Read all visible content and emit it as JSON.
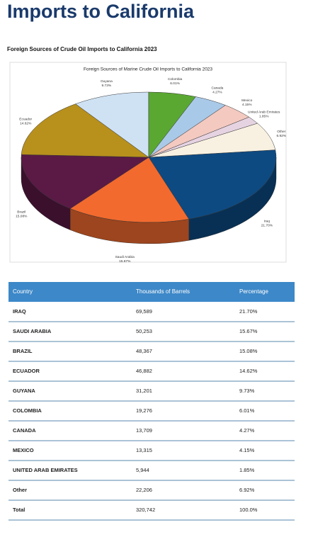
{
  "header": {
    "title": "Imports to California",
    "subtitle": "Foreign Sources of Crude Oil Imports to California 2023"
  },
  "chart_data": {
    "type": "pie",
    "title": "Foreign Sources of Marine Crude Oil Imports to California 2023",
    "categories": [
      "Iraq",
      "Saudi Arabia",
      "Brazil",
      "Ecuador",
      "Guyana",
      "Colombia",
      "Canada",
      "Mexico",
      "United Arab Emirates",
      "Other"
    ],
    "values": [
      21.7,
      15.67,
      15.08,
      14.62,
      9.73,
      6.01,
      4.27,
      4.15,
      1.85,
      6.92
    ],
    "value_labels": [
      "21.70%",
      "15.67%",
      "15.08%",
      "14.62%",
      "9.73%",
      "6.01%",
      "4.27%",
      "4.15%",
      "1.85%",
      "6.92%"
    ],
    "colors": [
      "#0d4a82",
      "#f26a2e",
      "#5a1a45",
      "#b8901c",
      "#cfe2f4",
      "#5aa832",
      "#a9c9e8",
      "#f3c9c0",
      "#e6d3e2",
      "#f8f1e2"
    ]
  },
  "table": {
    "columns": [
      "Country",
      "Thousands of Barrels",
      "Percentage"
    ],
    "rows": [
      [
        "IRAQ",
        "69,589",
        "21.70%"
      ],
      [
        "SAUDI ARABIA",
        "50,253",
        "15.67%"
      ],
      [
        "BRAZIL",
        "48,367",
        "15.08%"
      ],
      [
        "ECUADOR",
        "46,882",
        "14.62%"
      ],
      [
        "GUYANA",
        "31,201",
        "9.73%"
      ],
      [
        "COLOMBIA",
        "19,276",
        "6.01%"
      ],
      [
        "CANADA",
        "13,709",
        "4.27%"
      ],
      [
        "MEXICO",
        "13,315",
        "4.15%"
      ],
      [
        "UNITED ARAB EMIRATES",
        "5,944",
        "1.85%"
      ],
      [
        "Other",
        "22,206",
        "6.92%"
      ],
      [
        "Total",
        "320,742",
        "100.0%"
      ]
    ]
  }
}
